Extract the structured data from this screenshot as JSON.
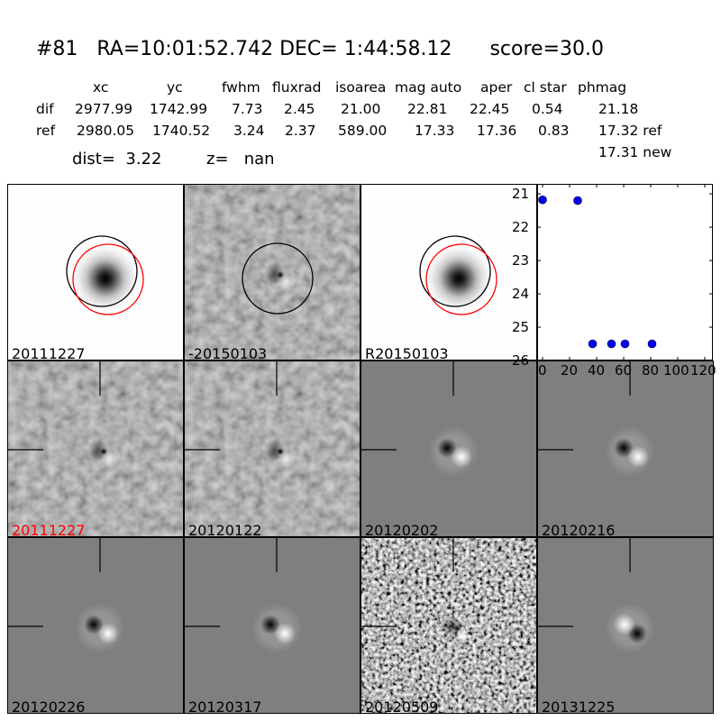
{
  "header": {
    "title": "#81   RA=10:01:52.742 DEC= 1:44:58.12      score=30.0",
    "columns": [
      "xc",
      "yc",
      "fwhm",
      "fluxrad",
      "isoarea",
      "mag auto",
      "aper",
      "cl star",
      "phmag"
    ],
    "rows": [
      {
        "label": "dif",
        "values": [
          "2977.99",
          "1742.99",
          "7.73",
          "2.45",
          "21.00",
          "22.81",
          "22.45",
          "0.54",
          "21.18"
        ]
      },
      {
        "label": "ref",
        "values": [
          "2980.05",
          "1740.52",
          "3.24",
          "2.37",
          "589.00",
          "17.33",
          "17.36",
          "0.83",
          "17.32 ref"
        ]
      }
    ],
    "phmag_new": "17.31 new",
    "dist": "dist=  3.22",
    "z": "z=   nan"
  },
  "panels": [
    {
      "label": "20111227",
      "type": "ref-star",
      "label_color": "#000000"
    },
    {
      "label": "-20150103",
      "type": "noise-diff",
      "label_color": "#000000"
    },
    {
      "label": "R20150103",
      "type": "ref-star",
      "label_color": "#000000"
    },
    {
      "label": "20111227",
      "type": "noise-diff",
      "label_color": "#ff0000"
    },
    {
      "label": "20120122",
      "type": "noise-diff",
      "label_color": "#000000"
    },
    {
      "label": "20120202",
      "type": "dipole",
      "label_color": "#000000"
    },
    {
      "label": "20120216",
      "type": "dipole",
      "label_color": "#000000"
    },
    {
      "label": "20120226",
      "type": "dipole",
      "label_color": "#000000"
    },
    {
      "label": "20120317",
      "type": "dipole",
      "label_color": "#000000"
    },
    {
      "label": "20120509",
      "type": "noise-strong",
      "label_color": "#000000"
    },
    {
      "label": "20131225",
      "type": "dipole-flipped",
      "label_color": "#000000"
    }
  ],
  "chart_data": {
    "type": "scatter",
    "x": [
      0,
      26,
      37,
      51,
      61,
      81
    ],
    "y": [
      21.18,
      21.2,
      25.5,
      25.5,
      25.5,
      25.5
    ],
    "xlim": [
      -4,
      126
    ],
    "ylim": [
      26,
      20.7
    ],
    "y_inverted": true,
    "xticks": [
      "0",
      "20",
      "40",
      "60",
      "80",
      "100",
      "120"
    ],
    "xtick_values": [
      0,
      20,
      40,
      60,
      80,
      100,
      120
    ],
    "yticks": [
      "21",
      "22",
      "23",
      "24",
      "25",
      "26"
    ],
    "ytick_values": [
      21,
      22,
      23,
      24,
      25,
      26
    ],
    "marker_color": "#0000ff",
    "grid": false
  }
}
